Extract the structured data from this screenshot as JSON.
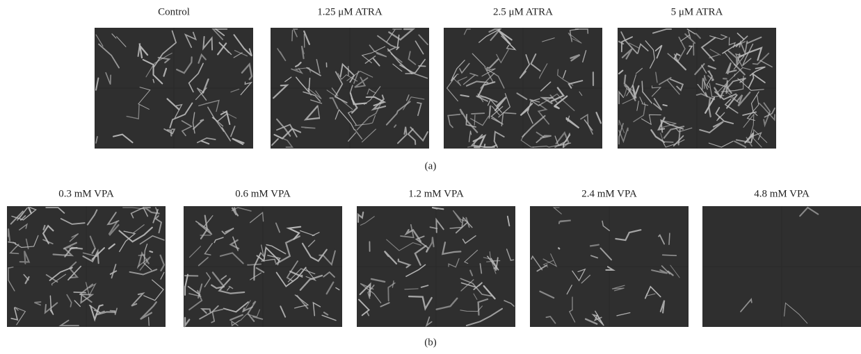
{
  "panel_a": {
    "titles": [
      "Control",
      "1.25 μM ATRA",
      "2.5 μM ATRA",
      "5 μM ATRA"
    ],
    "label": "(a)"
  },
  "panel_b": {
    "titles": [
      "0.3 mM VPA",
      "0.6 mM VPA",
      "1.2 mM VPA",
      "2.4 mM VPA",
      "4.8 mM VPA"
    ],
    "label": "(b)"
  }
}
